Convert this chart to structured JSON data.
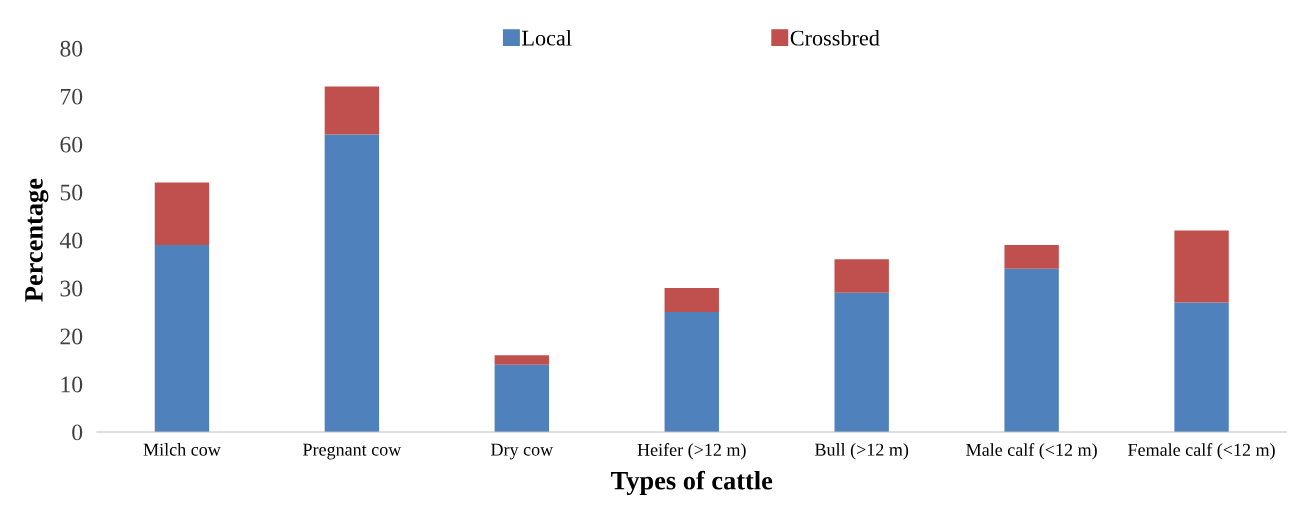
{
  "chart_data": {
    "type": "bar",
    "stacked": true,
    "xlabel": "Types of cattle",
    "ylabel": "Percentage",
    "categories": [
      "Milch cow",
      "Pregnant cow",
      "Dry cow",
      "Heifer (>12 m)",
      "Bull (>12 m)",
      "Male calf (<12 m)",
      "Female calf (<12 m)"
    ],
    "series": [
      {
        "name": "Local",
        "color": "#4f81bd",
        "values": [
          39,
          62,
          14,
          25,
          29,
          34,
          27
        ]
      },
      {
        "name": "Crossbred",
        "color": "#c0504d",
        "values": [
          13,
          10,
          2,
          5,
          7,
          5,
          15
        ]
      }
    ],
    "ylim": [
      0,
      80
    ],
    "yticks": [
      0,
      10,
      20,
      30,
      40,
      50,
      60,
      70,
      80
    ],
    "grid": false,
    "legend": "top"
  }
}
